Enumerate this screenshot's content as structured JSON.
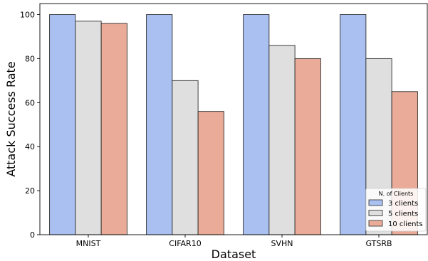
{
  "chart_data": {
    "type": "bar",
    "title": "",
    "xlabel": "Dataset",
    "ylabel": "Attack Success Rate",
    "categories": [
      "MNIST",
      "CIFAR10",
      "SVHN",
      "GTSRB"
    ],
    "ylim": [
      0,
      105
    ],
    "yticks": [
      0,
      20,
      40,
      60,
      80,
      100
    ],
    "grid": false,
    "legend": {
      "title": "N. of Clients",
      "placement": "lower-right"
    },
    "series": [
      {
        "name": "3 clients",
        "color": "#aac0f1",
        "values": [
          100,
          100,
          100,
          100
        ]
      },
      {
        "name": "5 clients",
        "color": "#dfdfdf",
        "values": [
          97,
          70,
          86,
          80
        ]
      },
      {
        "name": "10 clients",
        "color": "#eaac98",
        "values": [
          96,
          56,
          80,
          65
        ]
      }
    ]
  }
}
